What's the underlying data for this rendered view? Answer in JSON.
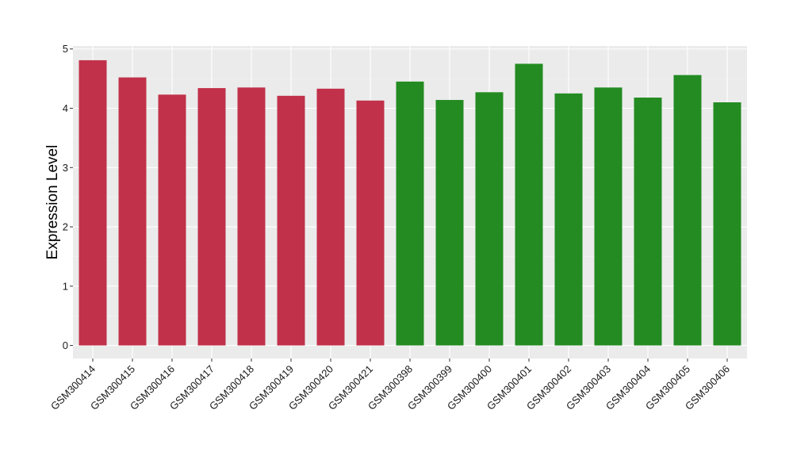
{
  "chart_data": {
    "type": "bar",
    "ylabel": "Expression Level",
    "xlabel": "",
    "ylim": [
      -0.22,
      5.05
    ],
    "yticks": [
      0,
      1,
      2,
      3,
      4,
      5
    ],
    "grid": true,
    "legend": "none",
    "categories": [
      "GSM300414",
      "GSM300415",
      "GSM300416",
      "GSM300417",
      "GSM300418",
      "GSM300419",
      "GSM300420",
      "GSM300421",
      "GSM300398",
      "GSM300399",
      "GSM300400",
      "GSM300401",
      "GSM300402",
      "GSM300403",
      "GSM300404",
      "GSM300405",
      "GSM300406"
    ],
    "values": [
      4.81,
      4.52,
      4.23,
      4.34,
      4.35,
      4.21,
      4.33,
      4.13,
      4.45,
      4.14,
      4.27,
      4.75,
      4.25,
      4.35,
      4.18,
      4.56,
      4.1
    ],
    "groups": [
      "red",
      "red",
      "red",
      "red",
      "red",
      "red",
      "red",
      "red",
      "green",
      "green",
      "green",
      "green",
      "green",
      "green",
      "green",
      "green",
      "green"
    ],
    "colors": {
      "red": "#c1314a",
      "green": "#238b22"
    }
  }
}
